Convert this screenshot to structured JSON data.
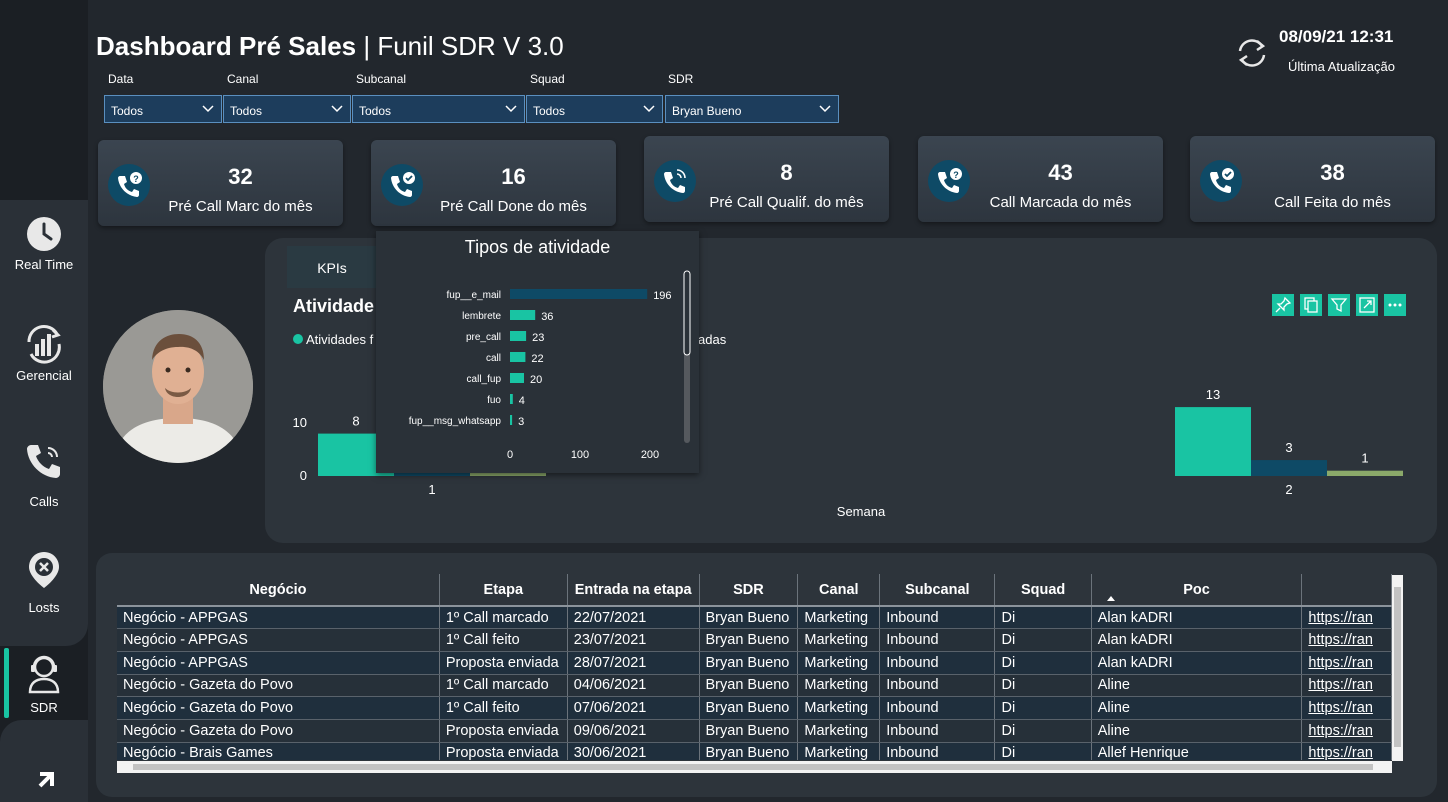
{
  "header": {
    "title_bold": "Dashboard Pré Sales",
    "title_sep": " | ",
    "title_rest": "Funil SDR V 3.0",
    "updated_date": "08/09/21 12:31",
    "updated_label": "Última Atualização"
  },
  "sidebar": {
    "items": [
      {
        "label": "Real Time",
        "icon": "clock-icon"
      },
      {
        "label": "Gerencial",
        "icon": "chart-refresh-icon"
      },
      {
        "label": "Calls",
        "icon": "phone-icon"
      },
      {
        "label": "Losts",
        "icon": "location-x-icon"
      },
      {
        "label": "SDR",
        "icon": "user-headset-icon"
      }
    ]
  },
  "filters": [
    {
      "label": "Data",
      "value": "Todos"
    },
    {
      "label": "Canal",
      "value": "Todos"
    },
    {
      "label": "Subcanal",
      "value": "Todos"
    },
    {
      "label": "Squad",
      "value": "Todos"
    },
    {
      "label": "SDR",
      "value": "Bryan Bueno"
    }
  ],
  "kpis": [
    {
      "value": "32",
      "label": "Pré Call Marc do mês",
      "icon": "phone-question-icon"
    },
    {
      "value": "16",
      "label": "Pré Call Done do mês",
      "icon": "phone-check-icon"
    },
    {
      "value": "8",
      "label": "Pré Call Qualif. do mês",
      "icon": "phone-ring-icon"
    },
    {
      "value": "43",
      "label": "Call Marcada do mês",
      "icon": "phone-question-icon"
    },
    {
      "value": "38",
      "label": "Call Feita do mês",
      "icon": "phone-check-icon"
    }
  ],
  "activity_panel": {
    "tab_label": "KPIs",
    "title": "Atividade",
    "legend_left": "Atividades f",
    "legend_right": "adas",
    "x_axis_label": "Semana"
  },
  "chart_data": [
    {
      "type": "bar",
      "title": "Tipos de atividade",
      "orientation": "horizontal",
      "categories": [
        "fup__e_mail",
        "lembrete",
        "pre_call",
        "call",
        "call_fup",
        "fuo",
        "fup__msg_whatsapp"
      ],
      "values": [
        196,
        36,
        23,
        22,
        20,
        4,
        3
      ],
      "xticks": [
        "0",
        "100",
        "200"
      ],
      "xlim": [
        0,
        200
      ],
      "color": "#0e4a66"
    },
    {
      "type": "bar",
      "title": "",
      "categories": [
        "1",
        "2"
      ],
      "series": [
        {
          "values": [
            8,
            13
          ],
          "color": "#19c4a3"
        },
        {
          "values": [
            null,
            3
          ],
          "color": "#0e4a66"
        },
        {
          "values": [
            null,
            1
          ],
          "color": "#8ba96a"
        }
      ],
      "yticks": [
        "0",
        "10"
      ],
      "xlabel": "Semana"
    }
  ],
  "table": {
    "columns": [
      "Negócio",
      "Etapa",
      "Entrada na etapa",
      "SDR",
      "Canal",
      "Subcanal",
      "Squad",
      "Poc",
      ""
    ],
    "rows": [
      [
        "Negócio - APPGAS",
        "1º Call marcado",
        "22/07/2021",
        "Bryan Bueno",
        "Marketing",
        "Inbound",
        "Di",
        "Alan kADRI",
        "https://ran"
      ],
      [
        "Negócio - APPGAS",
        "1º Call feito",
        "23/07/2021",
        "Bryan Bueno",
        "Marketing",
        "Inbound",
        "Di",
        "Alan kADRI",
        "https://ran"
      ],
      [
        "Negócio - APPGAS",
        "Proposta enviada",
        "28/07/2021",
        "Bryan Bueno",
        "Marketing",
        "Inbound",
        "Di",
        "Alan kADRI",
        "https://ran"
      ],
      [
        "Negócio - Gazeta do Povo",
        "1º Call marcado",
        "04/06/2021",
        "Bryan Bueno",
        "Marketing",
        "Inbound",
        "Di",
        "Aline",
        "https://ran"
      ],
      [
        "Negócio - Gazeta do Povo",
        "1º Call feito",
        "07/06/2021",
        "Bryan Bueno",
        "Marketing",
        "Inbound",
        "Di",
        "Aline",
        "https://ran"
      ],
      [
        "Negócio - Gazeta do Povo",
        "Proposta enviada",
        "09/06/2021",
        "Bryan Bueno",
        "Marketing",
        "Inbound",
        "Di",
        "Aline",
        "https://ran"
      ],
      [
        "Negócio - Brais Games",
        "Proposta enviada",
        "30/06/2021",
        "Bryan Bueno",
        "Marketing",
        "Inbound",
        "Di",
        "Allef Henrique",
        "https://ran"
      ]
    ]
  },
  "colors": {
    "accent": "#19c4a3",
    "navy": "#0e4a66",
    "olive": "#8ba96a"
  }
}
